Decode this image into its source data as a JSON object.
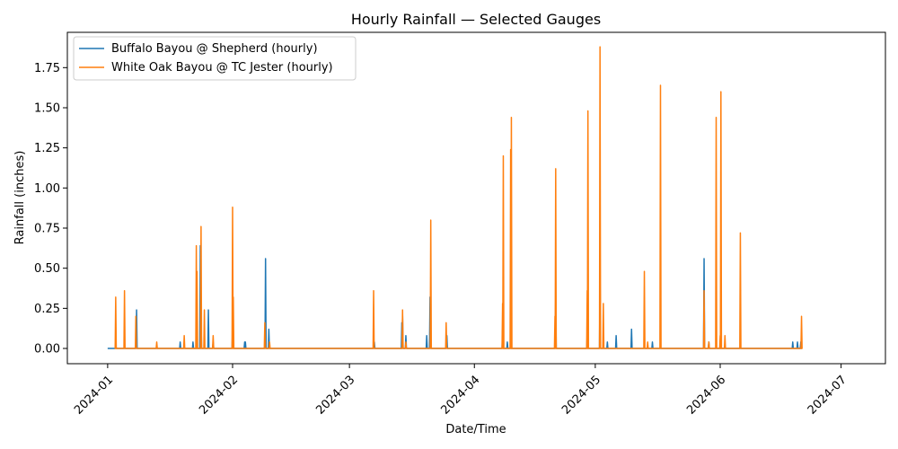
{
  "chart_data": {
    "type": "line",
    "title": "Hourly Rainfall — Selected Gauges",
    "xlabel": "Date/Time",
    "ylabel": "Rainfall (inches)",
    "x_range": [
      "2023-12-22",
      "2024-07-12"
    ],
    "ylim": [
      -0.095,
      1.97
    ],
    "x_ticks": [
      "2024-01",
      "2024-02",
      "2024-03",
      "2024-04",
      "2024-05",
      "2024-06",
      "2024-07"
    ],
    "x_tick_dates": [
      "2024-01-01",
      "2024-02-01",
      "2024-03-01",
      "2024-04-01",
      "2024-05-01",
      "2024-06-01",
      "2024-07-01"
    ],
    "y_ticks": [
      "0.00",
      "0.25",
      "0.50",
      "0.75",
      "1.00",
      "1.25",
      "1.50",
      "1.75"
    ],
    "y_tick_values": [
      0,
      0.25,
      0.5,
      0.75,
      1.0,
      1.25,
      1.5,
      1.75
    ],
    "grid": false,
    "legend_position": "top-left",
    "series": [
      {
        "name": "Buffalo Bayou @ Shepherd (hourly)",
        "color": "#1f77b4",
        "baseline": 0,
        "start": "2024-01-01",
        "end": "2024-06-21",
        "spikes": [
          [
            "2024-01-03",
            0.04
          ],
          [
            "2024-01-08",
            0.24
          ],
          [
            "2024-01-19",
            0.04
          ],
          [
            "2024-01-22",
            0.04
          ],
          [
            "2024-01-24",
            0.64
          ],
          [
            "2024-01-24",
            0.2
          ],
          [
            "2024-01-26",
            0.24
          ],
          [
            "2024-01-27",
            0.04
          ],
          [
            "2024-02-01",
            0.12
          ],
          [
            "2024-02-04",
            0.04
          ],
          [
            "2024-02-04",
            0.04
          ],
          [
            "2024-02-09",
            0.56
          ],
          [
            "2024-02-10",
            0.12
          ],
          [
            "2024-03-07",
            0.04
          ],
          [
            "2024-03-14",
            0.16
          ],
          [
            "2024-03-14",
            0.2
          ],
          [
            "2024-03-15",
            0.08
          ],
          [
            "2024-03-20",
            0.08
          ],
          [
            "2024-03-21",
            0.32
          ],
          [
            "2024-03-25",
            0.08
          ],
          [
            "2024-04-08",
            0.12
          ],
          [
            "2024-04-09",
            0.04
          ],
          [
            "2024-04-10",
            0.04
          ],
          [
            "2024-04-21",
            0.32
          ],
          [
            "2024-04-29",
            0.08
          ],
          [
            "2024-05-02",
            0.48
          ],
          [
            "2024-05-04",
            0.04
          ],
          [
            "2024-05-06",
            0.08
          ],
          [
            "2024-05-10",
            0.12
          ],
          [
            "2024-05-15",
            0.04
          ],
          [
            "2024-05-28",
            0.56
          ],
          [
            "2024-05-29",
            0.04
          ],
          [
            "2024-06-19",
            0.04
          ],
          [
            "2024-06-20",
            0.04
          ],
          [
            "2024-06-21",
            0.04
          ]
        ]
      },
      {
        "name": "White Oak Bayou @ TC Jester (hourly)",
        "color": "#ff7f0e",
        "baseline": 0,
        "spikes": [
          [
            "2024-01-03",
            0.32
          ],
          [
            "2024-01-05",
            0.36
          ],
          [
            "2024-01-08",
            0.2
          ],
          [
            "2024-01-13",
            0.04
          ],
          [
            "2024-01-20",
            0.08
          ],
          [
            "2024-01-23",
            0.48
          ],
          [
            "2024-01-23",
            0.64
          ],
          [
            "2024-01-24",
            0.76
          ],
          [
            "2024-01-25",
            0.24
          ],
          [
            "2024-01-27",
            0.08
          ],
          [
            "2024-02-01",
            0.88
          ],
          [
            "2024-02-01",
            0.32
          ],
          [
            "2024-02-09",
            0.16
          ],
          [
            "2024-02-10",
            0.04
          ],
          [
            "2024-03-07",
            0.36
          ],
          [
            "2024-03-14",
            0.24
          ],
          [
            "2024-03-15",
            0.04
          ],
          [
            "2024-03-21",
            0.8
          ],
          [
            "2024-03-25",
            0.16
          ],
          [
            "2024-04-08",
            1.2
          ],
          [
            "2024-04-08",
            0.28
          ],
          [
            "2024-04-10",
            1.44
          ],
          [
            "2024-04-10",
            1.24
          ],
          [
            "2024-04-21",
            1.12
          ],
          [
            "2024-04-21",
            0.2
          ],
          [
            "2024-04-29",
            1.48
          ],
          [
            "2024-04-29",
            0.36
          ],
          [
            "2024-05-02",
            1.88
          ],
          [
            "2024-05-03",
            0.28
          ],
          [
            "2024-05-13",
            0.48
          ],
          [
            "2024-05-14",
            0.04
          ],
          [
            "2024-05-17",
            1.64
          ],
          [
            "2024-05-28",
            0.36
          ],
          [
            "2024-05-29",
            0.04
          ],
          [
            "2024-05-31",
            1.44
          ],
          [
            "2024-06-01",
            1.6
          ],
          [
            "2024-06-01",
            0.08
          ],
          [
            "2024-06-02",
            0.08
          ],
          [
            "2024-06-06",
            0.72
          ],
          [
            "2024-06-21",
            0.2
          ]
        ]
      }
    ]
  }
}
